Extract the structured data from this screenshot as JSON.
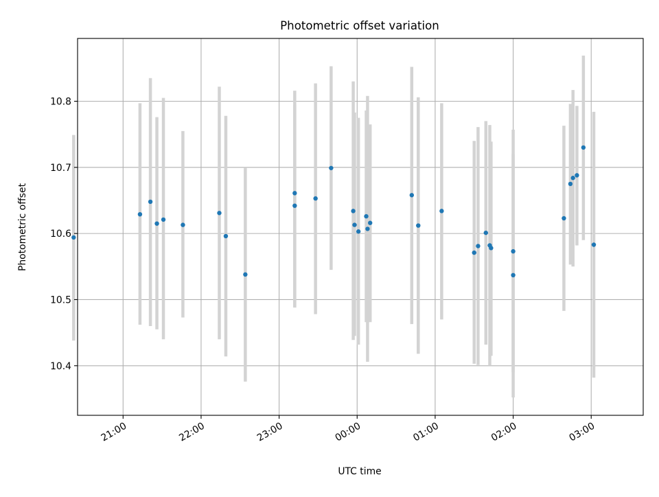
{
  "chart_data": {
    "type": "scatter",
    "title": "Photometric offset variation",
    "xlabel": "UTC time",
    "ylabel": "Photometric offset",
    "x_axis_kind": "time",
    "xlim": [
      "20:25",
      "03:40"
    ],
    "ylim": [
      10.325,
      10.895
    ],
    "x_ticks": [
      {
        "value": "21:00",
        "label": "21:00"
      },
      {
        "value": "22:00",
        "label": "22:00"
      },
      {
        "value": "23:00",
        "label": "23:00"
      },
      {
        "value": "00:00",
        "label": "00:00"
      },
      {
        "value": "01:00",
        "label": "01:00"
      },
      {
        "value": "02:00",
        "label": "02:00"
      },
      {
        "value": "03:00",
        "label": "03:00"
      }
    ],
    "y_ticks": [
      {
        "value": 10.4,
        "label": "10.4"
      },
      {
        "value": 10.5,
        "label": "10.5"
      },
      {
        "value": 10.6,
        "label": "10.6"
      },
      {
        "value": 10.7,
        "label": "10.7"
      },
      {
        "value": 10.8,
        "label": "10.8"
      }
    ],
    "grid": true,
    "marker_color": "#1f77b4",
    "errorbar_color": "#d3d3d3",
    "points": [
      {
        "t": "20:22",
        "y": 10.594,
        "ylo": 10.438,
        "yhi": 10.749
      },
      {
        "t": "21:13",
        "y": 10.629,
        "ylo": 10.462,
        "yhi": 10.797
      },
      {
        "t": "21:21",
        "y": 10.648,
        "ylo": 10.46,
        "yhi": 10.835
      },
      {
        "t": "21:26",
        "y": 10.615,
        "ylo": 10.455,
        "yhi": 10.776
      },
      {
        "t": "21:31",
        "y": 10.621,
        "ylo": 10.44,
        "yhi": 10.805
      },
      {
        "t": "21:46",
        "y": 10.613,
        "ylo": 10.473,
        "yhi": 10.755
      },
      {
        "t": "22:14",
        "y": 10.631,
        "ylo": 10.44,
        "yhi": 10.822
      },
      {
        "t": "22:19",
        "y": 10.596,
        "ylo": 10.414,
        "yhi": 10.778
      },
      {
        "t": "22:34",
        "y": 10.538,
        "ylo": 10.376,
        "yhi": 10.7
      },
      {
        "t": "23:12",
        "y": 10.661,
        "ylo": 10.488,
        "yhi": 10.816
      },
      {
        "t": "23:12",
        "y": 10.642,
        "ylo": 10.488,
        "yhi": 10.795
      },
      {
        "t": "23:28",
        "y": 10.653,
        "ylo": 10.478,
        "yhi": 10.827
      },
      {
        "t": "23:40",
        "y": 10.699,
        "ylo": 10.545,
        "yhi": 10.853
      },
      {
        "t": "23:57",
        "y": 10.634,
        "ylo": 10.439,
        "yhi": 10.83
      },
      {
        "t": "23:58",
        "y": 10.613,
        "ylo": 10.445,
        "yhi": 10.783
      },
      {
        "t": "00:01",
        "y": 10.603,
        "ylo": 10.432,
        "yhi": 10.775
      },
      {
        "t": "00:07",
        "y": 10.626,
        "ylo": 10.466,
        "yhi": 10.786
      },
      {
        "t": "00:08",
        "y": 10.607,
        "ylo": 10.406,
        "yhi": 10.808
      },
      {
        "t": "00:10",
        "y": 10.616,
        "ylo": 10.466,
        "yhi": 10.765
      },
      {
        "t": "00:42",
        "y": 10.658,
        "ylo": 10.463,
        "yhi": 10.852
      },
      {
        "t": "00:47",
        "y": 10.612,
        "ylo": 10.418,
        "yhi": 10.806
      },
      {
        "t": "01:05",
        "y": 10.634,
        "ylo": 10.47,
        "yhi": 10.797
      },
      {
        "t": "01:30",
        "y": 10.571,
        "ylo": 10.403,
        "yhi": 10.74
      },
      {
        "t": "01:33",
        "y": 10.581,
        "ylo": 10.401,
        "yhi": 10.761
      },
      {
        "t": "01:39",
        "y": 10.601,
        "ylo": 10.432,
        "yhi": 10.77
      },
      {
        "t": "01:42",
        "y": 10.582,
        "ylo": 10.4,
        "yhi": 10.764
      },
      {
        "t": "01:43",
        "y": 10.578,
        "ylo": 10.415,
        "yhi": 10.739
      },
      {
        "t": "02:00",
        "y": 10.573,
        "ylo": 10.39,
        "yhi": 10.757
      },
      {
        "t": "02:00",
        "y": 10.537,
        "ylo": 10.352,
        "yhi": 10.72
      },
      {
        "t": "02:39",
        "y": 10.623,
        "ylo": 10.483,
        "yhi": 10.763
      },
      {
        "t": "02:44",
        "y": 10.675,
        "ylo": 10.553,
        "yhi": 10.796
      },
      {
        "t": "02:46",
        "y": 10.684,
        "ylo": 10.55,
        "yhi": 10.817
      },
      {
        "t": "02:49",
        "y": 10.688,
        "ylo": 10.582,
        "yhi": 10.793
      },
      {
        "t": "02:54",
        "y": 10.73,
        "ylo": 10.59,
        "yhi": 10.869
      },
      {
        "t": "03:02",
        "y": 10.583,
        "ylo": 10.382,
        "yhi": 10.784
      }
    ]
  }
}
